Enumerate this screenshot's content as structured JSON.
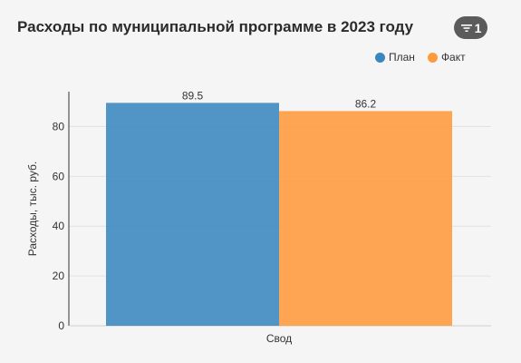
{
  "header": {
    "title": "Расходы по муниципальной программе в 2023 году",
    "filter_count": "1",
    "filter_icon": "filter-icon"
  },
  "colors": {
    "plan": "#3a86bf",
    "fact": "#ff9a3c",
    "grid": "#e2e2e2",
    "axis": "#333333"
  },
  "chart_data": {
    "type": "bar",
    "categories": [
      "Свод"
    ],
    "series": [
      {
        "name": "План",
        "values": [
          89.5
        ],
        "color": "#3a86bf"
      },
      {
        "name": "Факт",
        "values": [
          86.2
        ],
        "color": "#ff9a3c"
      }
    ],
    "data_labels": [
      "89.5",
      "86.2"
    ],
    "title": "Расходы по муниципальной программе в 2023 году",
    "xlabel": "",
    "ylabel": "Расходы, тыс. руб.",
    "ylim": [
      0,
      94
    ],
    "yticks": [
      0,
      20,
      40,
      60,
      80
    ],
    "grid": true,
    "legend": "top-right"
  }
}
